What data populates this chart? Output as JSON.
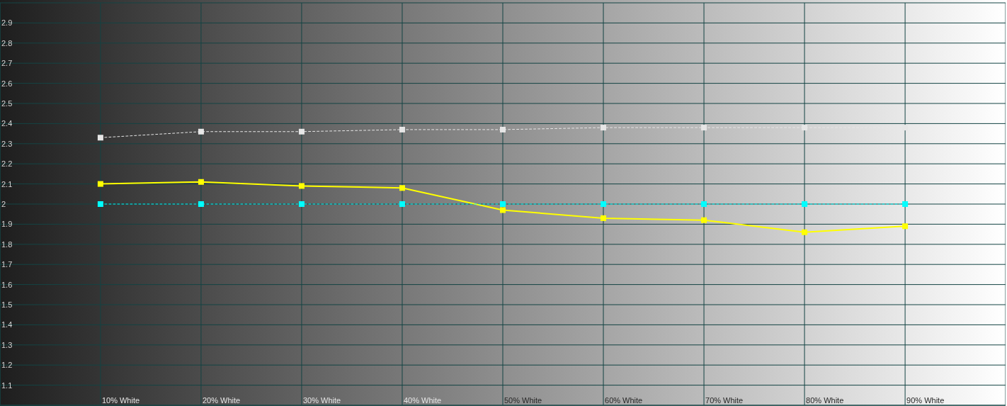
{
  "chart_data": {
    "type": "line",
    "categories": [
      "10% White",
      "20% White",
      "30% White",
      "40% White",
      "50% White",
      "60% White",
      "70% White",
      "80% White",
      "90% White"
    ],
    "series": [
      {
        "color": "#e6e6e6",
        "line_style": "dashed",
        "values": [
          2.33,
          2.36,
          2.36,
          2.37,
          2.37,
          2.38,
          2.38,
          2.38,
          2.38
        ]
      },
      {
        "color": "#ffff00",
        "line_style": "solid",
        "values": [
          2.1,
          2.11,
          2.09,
          2.08,
          1.97,
          1.93,
          1.92,
          1.86,
          1.89
        ]
      },
      {
        "color": "#00ffff",
        "line_style": "dashed",
        "values": [
          2,
          2,
          2,
          2,
          2,
          2,
          2,
          2,
          2
        ]
      }
    ],
    "ylim": [
      1,
      3
    ],
    "yticks": [
      1.1,
      1.2,
      1.3,
      1.4,
      1.5,
      1.6,
      1.7,
      1.8,
      1.9,
      2,
      2.1,
      2.2,
      2.3,
      2.4,
      2.5,
      2.6,
      2.7,
      2.8,
      2.9
    ],
    "grid": true,
    "marker": "square"
  }
}
